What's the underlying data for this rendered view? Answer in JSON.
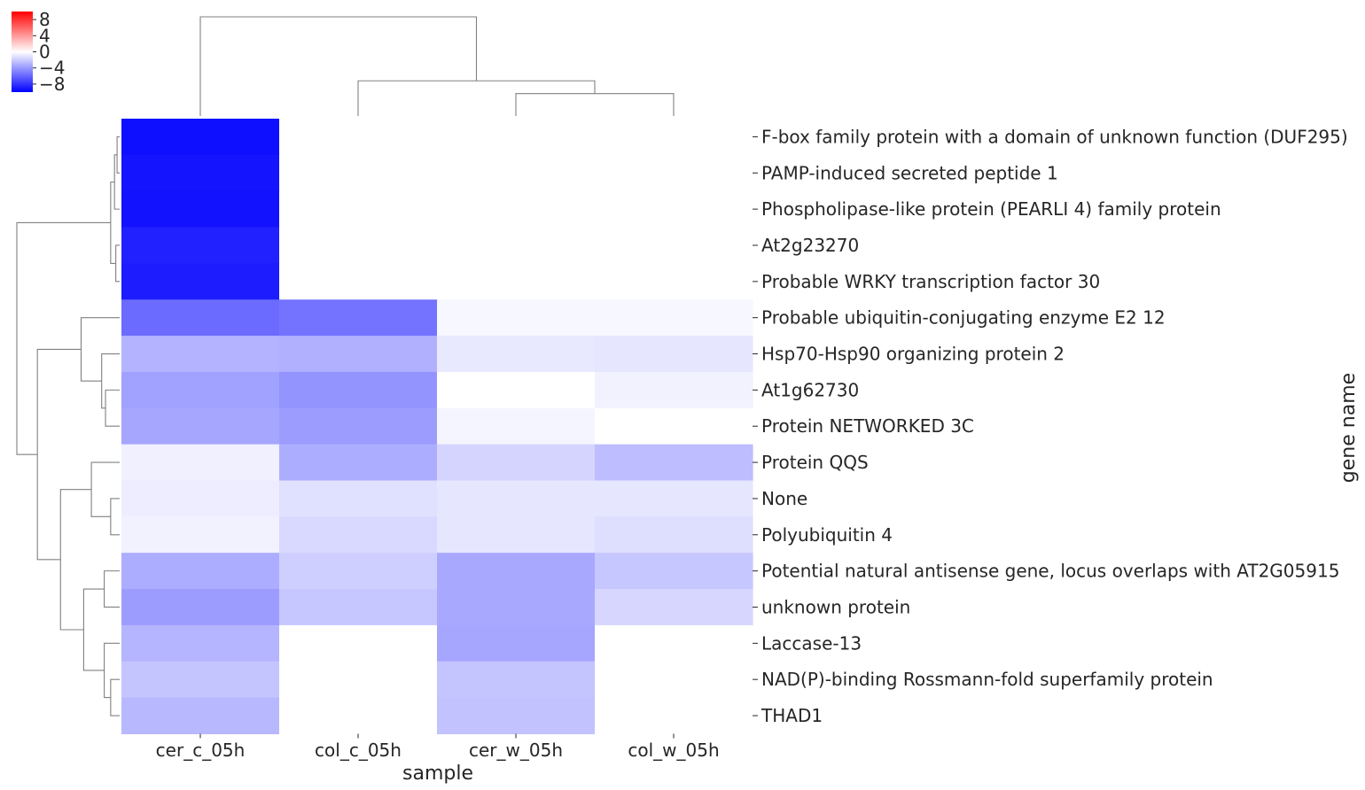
{
  "chart_data": {
    "type": "heatmap",
    "title": "",
    "xlabel": "sample",
    "ylabel": "gene name",
    "columns": [
      "cer_c_05h",
      "col_c_05h",
      "cer_w_05h",
      "col_w_05h"
    ],
    "rows": [
      "F-box family protein with a domain of unknown function (DUF295)",
      "PAMP-induced secreted peptide 1",
      "Phospholipase-like protein (PEARLI 4) family protein",
      "At2g23270",
      "Probable WRKY transcription factor 30",
      "Probable ubiquitin-conjugating enzyme E2 12",
      "Hsp70-Hsp90 organizing protein 2",
      "At1g62730",
      "Protein NETWORKED 3C",
      "Protein QQS",
      "None",
      "Polyubiquitin 4",
      "Potential natural antisense gene, locus overlaps with AT2G05915",
      "unknown protein",
      "Laccase-13",
      "NAD(P)-binding Rossmann-fold superfamily protein",
      "THAD1"
    ],
    "values": [
      [
        -9.4,
        0.0,
        0.0,
        0.0
      ],
      [
        -9.2,
        0.0,
        0.0,
        0.0
      ],
      [
        -9.3,
        0.0,
        0.0,
        0.0
      ],
      [
        -8.7,
        0.0,
        0.0,
        0.0
      ],
      [
        -8.9,
        0.0,
        0.0,
        0.0
      ],
      [
        -5.8,
        -5.5,
        -0.3,
        -0.3
      ],
      [
        -3.0,
        -3.1,
        -0.9,
        -1.0
      ],
      [
        -3.7,
        -4.2,
        0.0,
        -0.5
      ],
      [
        -3.5,
        -3.9,
        -0.4,
        0.0
      ],
      [
        -0.6,
        -3.2,
        -1.7,
        -2.6
      ],
      [
        -0.7,
        -1.2,
        -1.0,
        -1.0
      ],
      [
        -0.5,
        -1.5,
        -1.0,
        -1.3
      ],
      [
        -3.2,
        -1.9,
        -3.4,
        -2.2
      ],
      [
        -3.9,
        -2.2,
        -3.4,
        -1.6
      ],
      [
        -2.9,
        0.0,
        -3.5,
        0.0
      ],
      [
        -2.3,
        0.0,
        -2.3,
        0.0
      ],
      [
        -2.8,
        0.0,
        -2.4,
        0.0
      ]
    ],
    "vmin": -10,
    "vmax": 10,
    "colormap": [
      "#0000ff",
      "#ffffff",
      "#ff0000"
    ],
    "colorbar": {
      "ticks": [
        8,
        4,
        0,
        -4,
        -8
      ],
      "tick_labels": [
        "8",
        "4",
        "0",
        "−4",
        "−8"
      ]
    },
    "row_dendrogram": {
      "merges": [
        [
          0,
          1,
          0.1
        ],
        [
          3,
          4,
          0.15
        ],
        [
          17,
          2,
          0.2
        ],
        [
          19,
          18,
          0.35
        ],
        [
          7,
          8,
          0.55
        ],
        [
          6,
          21,
          0.7
        ],
        [
          5,
          22,
          1.5
        ],
        [
          10,
          11,
          0.35
        ],
        [
          9,
          24,
          1.1
        ],
        [
          12,
          13,
          0.6
        ],
        [
          15,
          16,
          0.35
        ],
        [
          14,
          27,
          0.6
        ],
        [
          26,
          28,
          1.4
        ],
        [
          25,
          29,
          2.3
        ],
        [
          23,
          30,
          3.2
        ],
        [
          20,
          31,
          4.0
        ]
      ]
    },
    "col_dendrogram": {
      "merges": [
        [
          2,
          3,
          0.35
        ],
        [
          1,
          4,
          0.55
        ],
        [
          0,
          5,
          1.55
        ]
      ]
    }
  }
}
